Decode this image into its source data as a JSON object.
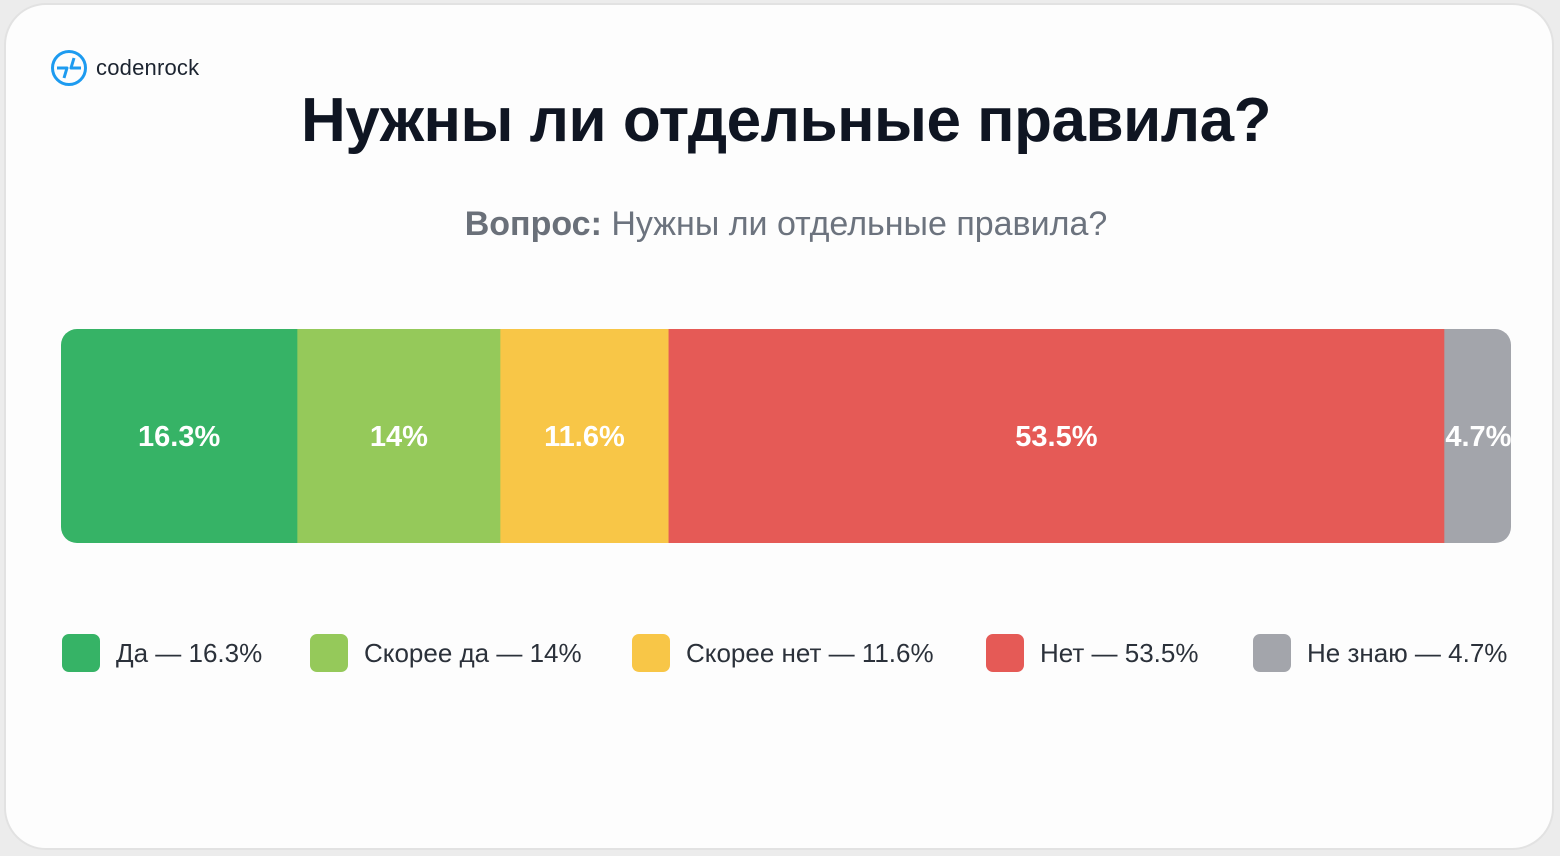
{
  "brand": {
    "name": "codenrock",
    "accent": "#1d9bf0"
  },
  "title": "Нужны ли отдельные правила?",
  "question": {
    "label": "Вопрос:",
    "text": "Нужны ли отдельные правила?"
  },
  "chart_data": {
    "type": "bar",
    "orientation": "horizontal-stacked",
    "total": 100,
    "categories": [
      "Да",
      "Скорее да",
      "Скорее нет",
      "Нет",
      "Не знаю"
    ],
    "values": [
      16.3,
      14,
      11.6,
      53.5,
      4.7
    ],
    "value_labels": [
      "16.3%",
      "14%",
      "11.6%",
      "53.5%",
      "4.7%"
    ],
    "colors": [
      "#36b366",
      "#95c95a",
      "#f8c647",
      "#e55a56",
      "#a3a5ab"
    ],
    "legend": [
      {
        "label": "Да — 16.3%",
        "color": "#36b366"
      },
      {
        "label": "Скорее да — 14%",
        "color": "#95c95a"
      },
      {
        "label": "Скорее нет — 11.6%",
        "color": "#f8c647"
      },
      {
        "label": "Нет — 53.5%",
        "color": "#e55a56"
      },
      {
        "label": "Не знаю — 4.7%",
        "color": "#a3a5ab"
      }
    ],
    "legend_position": "bottom",
    "grid": false
  }
}
